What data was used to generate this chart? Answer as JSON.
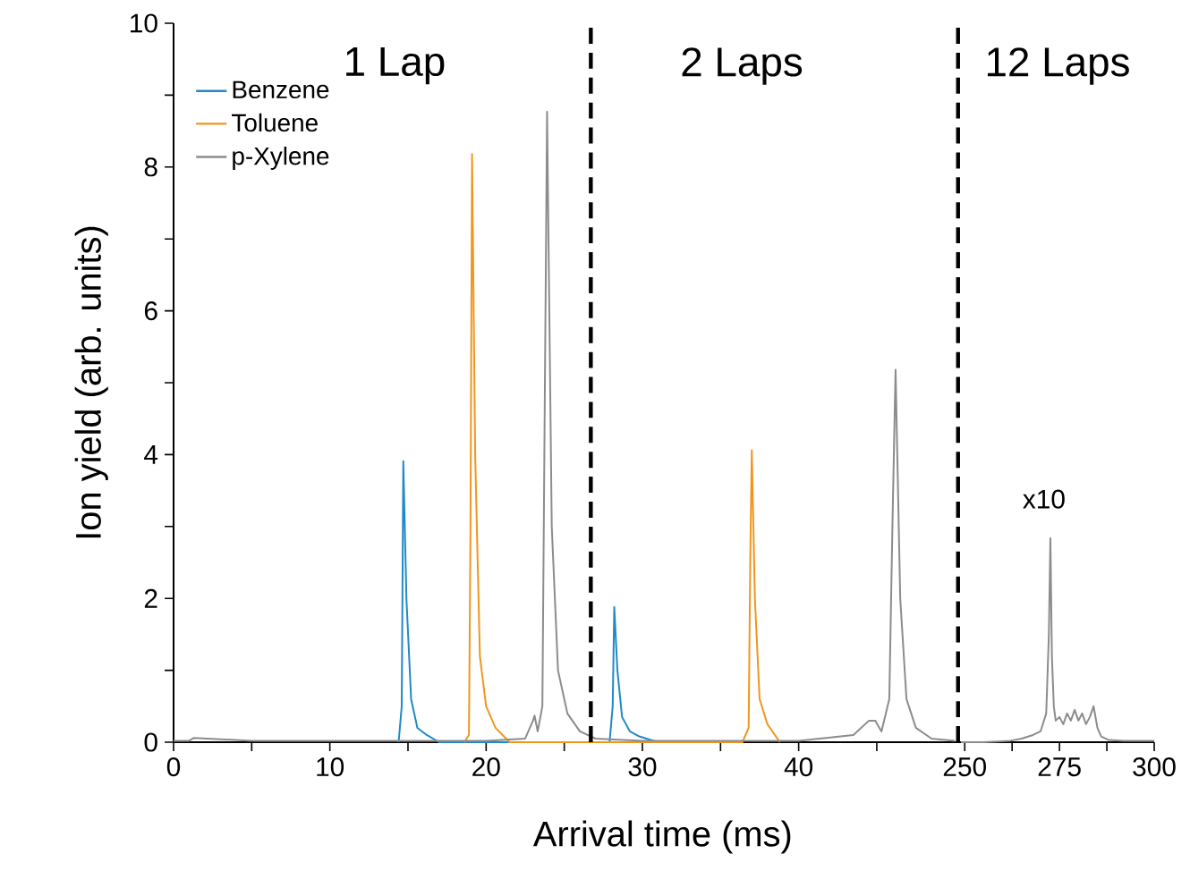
{
  "chart_data": [
    {
      "type": "line",
      "xlabel": "Arrival time (ms)",
      "ylabel": "Ion yield (arb. units)",
      "xlim": [
        0,
        50.5
      ],
      "xticks": [
        0,
        {
          "value": 5,
          "label": null
        },
        10,
        {
          "value": 15,
          "label": null
        },
        20,
        {
          "value": 25,
          "label": null
        },
        30,
        {
          "value": 35,
          "label": null
        },
        40,
        {
          "value": 45,
          "label": null
        }
      ],
      "ylim": [
        0,
        10
      ],
      "yticks": [
        0,
        {
          "value": 1,
          "label": null
        },
        2,
        {
          "value": 3,
          "label": null
        },
        4,
        {
          "value": 5,
          "label": null
        },
        6,
        {
          "value": 7,
          "label": null
        },
        8,
        {
          "value": 9,
          "label": null
        },
        10
      ],
      "legend": "top left",
      "grid": false,
      "marker": "none",
      "line_style": "solid",
      "series": [
        {
          "name": "Benzene",
          "color": "#1f8ac8",
          "x": [
            14.4,
            14.6,
            14.7,
            14.9,
            15.2,
            15.6,
            16.2,
            17,
            27.9,
            28.1,
            28.2,
            28.4,
            28.7,
            29.2,
            29.8,
            31
          ],
          "values": [
            0,
            0.5,
            3.91,
            2.0,
            0.6,
            0.2,
            0.1,
            0,
            0,
            0.5,
            1.88,
            1.0,
            0.35,
            0.15,
            0.08,
            0
          ]
        },
        {
          "name": "Toluene",
          "color": "#f0961e",
          "x": [
            18.6,
            18.9,
            19.0,
            19.1,
            19.3,
            19.6,
            20.0,
            20.6,
            21.5,
            36.4,
            36.8,
            36.9,
            37.0,
            37.2,
            37.5,
            38.0,
            38.8
          ],
          "values": [
            0,
            0.1,
            3,
            8.18,
            4,
            1.2,
            0.5,
            0.2,
            0,
            0,
            0.2,
            2.5,
            4.06,
            2.0,
            0.6,
            0.25,
            0
          ]
        },
        {
          "name": "p-Xylene",
          "color": "#8c8c8c",
          "x": [
            0,
            1,
            1.3,
            5,
            10,
            15,
            20,
            22.5,
            23.0,
            23.1,
            23.3,
            23.6,
            23.9,
            24.2,
            24.6,
            25.2,
            26,
            27,
            30,
            35,
            40,
            43.5,
            44.5,
            44.9,
            45.3,
            45.8,
            46.0,
            46.2,
            46.5,
            46.9,
            47.5,
            48.5,
            50
          ],
          "values": [
            0.02,
            0.02,
            0.06,
            0.02,
            0.02,
            0.02,
            0.02,
            0.05,
            0.3,
            0.37,
            0.15,
            0.5,
            8.77,
            3.0,
            1.0,
            0.4,
            0.15,
            0.05,
            0.02,
            0.02,
            0.02,
            0.1,
            0.3,
            0.3,
            0.15,
            0.6,
            3.0,
            5.18,
            2.0,
            0.6,
            0.2,
            0.05,
            0.02
          ]
        }
      ],
      "ref_lines": [
        {
          "axis": "x",
          "value": 26.7,
          "color": "#000000",
          "line_style": "dashed"
        },
        {
          "axis": "x",
          "value": 50.2,
          "color": "#000000",
          "line_style": "dashed"
        }
      ],
      "annotations": [
        "1 Lap",
        "2 Laps"
      ]
    },
    {
      "type": "line",
      "xlim": [
        249,
        300
      ],
      "xticks": [
        250,
        {
          "value": 262.5,
          "label": null
        },
        275,
        {
          "value": 287.5,
          "label": null
        },
        300
      ],
      "ylim": [
        0,
        10
      ],
      "tick_labels": "x",
      "marker": "none",
      "line_style": "solid",
      "series": [
        {
          "color": "#8c8c8c",
          "x": [
            249,
            255,
            262,
            265,
            268,
            270,
            271.5,
            272.2,
            272.6,
            273,
            273.5,
            274,
            275,
            276,
            277,
            278,
            279,
            280,
            281,
            282,
            283,
            284,
            285,
            286,
            288,
            292,
            300
          ],
          "values": [
            0,
            0,
            0.02,
            0.05,
            0.1,
            0.15,
            0.4,
            1.5,
            2.84,
            1.2,
            0.5,
            0.3,
            0.35,
            0.25,
            0.4,
            0.3,
            0.45,
            0.3,
            0.4,
            0.25,
            0.35,
            0.5,
            0.2,
            0.08,
            0.03,
            0.02,
            0.02
          ]
        }
      ],
      "annotations": [
        "12 Laps",
        "x10"
      ]
    }
  ]
}
